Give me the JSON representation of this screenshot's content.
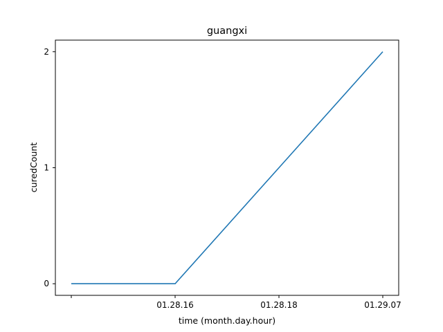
{
  "chart_data": {
    "type": "line",
    "title": "guangxi",
    "xlabel": "time (month.day.hour)",
    "ylabel": "curedCount",
    "x": [
      "",
      "01.28.16",
      "01.28.18",
      "01.29.07"
    ],
    "series": [
      {
        "values": [
          0,
          0,
          1,
          2
        ],
        "color": "#1f77b4"
      }
    ],
    "yticks": [
      0,
      1,
      2
    ],
    "ylim": [
      -0.1,
      2.1
    ],
    "grid": false
  }
}
